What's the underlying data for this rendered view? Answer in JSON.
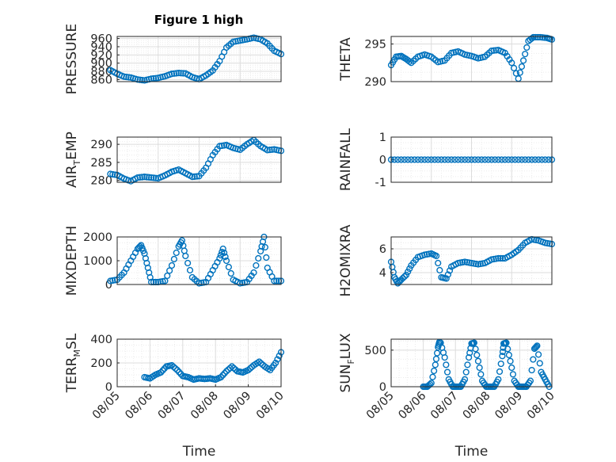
{
  "figure": {
    "title": "Figure 1 high"
  },
  "chart_data": [
    {
      "type": "scatter",
      "id": "pressure",
      "title": "Figure 1 high",
      "xlabel": "",
      "ylabel": "PRESSURE",
      "xlim": [
        "08/06",
        "08/10"
      ],
      "ylim": [
        855,
        965
      ],
      "yticks": [
        860,
        880,
        900,
        920,
        940,
        960
      ],
      "xticks": [],
      "grid": true,
      "minor_grid": true,
      "marker_color": "#0072BD",
      "x": [
        "08/05 20:00",
        "08/06 00:00",
        "08/06 04:00",
        "08/06 08:00",
        "08/06 12:00",
        "08/06 16:00",
        "08/06 20:00",
        "08/07 00:00",
        "08/07 04:00",
        "08/07 08:00",
        "08/07 12:00",
        "08/07 16:00",
        "08/07 20:00",
        "08/08 00:00",
        "08/08 04:00",
        "08/08 08:00",
        "08/08 12:00",
        "08/08 16:00",
        "08/08 20:00",
        "08/09 00:00",
        "08/09 04:00",
        "08/09 08:00",
        "08/09 12:00",
        "08/09 16:00",
        "08/09 20:00",
        "08/10 00:00"
      ],
      "y": [
        883,
        874,
        867,
        865,
        860,
        858,
        862,
        864,
        868,
        874,
        876,
        875,
        866,
        861,
        870,
        882,
        905,
        938,
        952,
        955,
        958,
        962,
        958,
        948,
        930,
        922
      ]
    },
    {
      "type": "scatter",
      "id": "theta",
      "xlabel": "",
      "ylabel": "THETA",
      "xlim": [
        "08/06",
        "08/10"
      ],
      "ylim": [
        290,
        296
      ],
      "yticks": [
        290,
        295
      ],
      "xticks": [],
      "grid": true,
      "minor_grid": true,
      "marker_color": "#0072BD",
      "x": [
        "08/06 00:00",
        "08/06 03:00",
        "08/06 06:00",
        "08/06 09:00",
        "08/06 12:00",
        "08/06 16:00",
        "08/06 20:00",
        "08/07 00:00",
        "08/07 04:00",
        "08/07 08:00",
        "08/07 12:00",
        "08/07 16:00",
        "08/07 20:00",
        "08/08 00:00",
        "08/08 04:00",
        "08/08 08:00",
        "08/08 12:00",
        "08/08 16:00",
        "08/08 20:00",
        "08/09 00:00",
        "08/09 04:00",
        "08/09 07:00",
        "08/09 10:00",
        "08/09 13:00",
        "08/09 17:00",
        "08/09 21:00",
        "08/10 00:00"
      ],
      "y": [
        292.2,
        293.3,
        293.4,
        293.0,
        292.5,
        293.3,
        293.6,
        293.3,
        292.6,
        292.8,
        293.8,
        294.0,
        293.6,
        293.4,
        293.1,
        293.3,
        294.1,
        294.2,
        293.8,
        292.5,
        290.4,
        292.8,
        295.4,
        295.9,
        295.9,
        295.8,
        295.6
      ]
    },
    {
      "type": "scatter",
      "id": "air_temp",
      "xlabel": "",
      "ylabel": "AIR_TEMP",
      "xlim": [
        "08/06",
        "08/10"
      ],
      "ylim": [
        279.5,
        292
      ],
      "yticks": [
        280,
        285,
        290
      ],
      "xticks": [],
      "grid": true,
      "minor_grid": true,
      "marker_color": "#0072BD",
      "x": [
        "08/05 20:00",
        "08/06 00:00",
        "08/06 04:00",
        "08/06 08:00",
        "08/06 12:00",
        "08/06 16:00",
        "08/06 20:00",
        "08/07 00:00",
        "08/07 04:00",
        "08/07 08:00",
        "08/07 12:00",
        "08/07 16:00",
        "08/07 20:00",
        "08/08 00:00",
        "08/08 04:00",
        "08/08 08:00",
        "08/08 12:00",
        "08/08 16:00",
        "08/08 20:00",
        "08/09 00:00",
        "08/09 04:00",
        "08/09 08:00",
        "08/09 12:00",
        "08/09 16:00",
        "08/09 20:00",
        "08/10 00:00"
      ],
      "y": [
        281.8,
        281.5,
        280.5,
        279.8,
        280.8,
        281.0,
        280.8,
        280.6,
        281.4,
        282.4,
        283.0,
        282.0,
        281.0,
        281.2,
        283.5,
        287.0,
        289.5,
        289.8,
        289.0,
        288.5,
        290.0,
        291.2,
        289.5,
        288.4,
        288.6,
        288.2
      ]
    },
    {
      "type": "scatter",
      "id": "rainfall",
      "xlabel": "",
      "ylabel": "RAINFALL",
      "xlim": [
        "08/06",
        "08/10"
      ],
      "ylim": [
        -1,
        1
      ],
      "yticks": [
        -1,
        0,
        1
      ],
      "xticks": [],
      "grid": true,
      "minor_grid": true,
      "marker_color": "#0072BD",
      "x": [
        "08/06 00:00",
        "08/06 06:00",
        "08/06 12:00",
        "08/06 18:00",
        "08/07 00:00",
        "08/07 06:00",
        "08/07 12:00",
        "08/07 18:00",
        "08/08 00:00",
        "08/08 06:00",
        "08/08 12:00",
        "08/08 18:00",
        "08/09 00:00",
        "08/09 06:00",
        "08/09 12:00",
        "08/09 18:00",
        "08/10 00:00"
      ],
      "y": [
        0,
        0,
        0,
        0,
        0,
        0,
        0,
        0,
        0,
        0,
        0,
        0,
        0,
        0,
        0,
        0,
        0
      ]
    },
    {
      "type": "scatter",
      "id": "mixdepth",
      "xlabel": "",
      "ylabel": "MIXDEPTH",
      "xlim": [
        "08/06",
        "08/10"
      ],
      "ylim": [
        0,
        2000
      ],
      "yticks": [
        0,
        1000,
        2000
      ],
      "xticks": [],
      "grid": true,
      "minor_grid": true,
      "marker_color": "#0072BD",
      "x": [
        "08/05 20:00",
        "08/06 00:00",
        "08/06 04:00",
        "08/06 08:00",
        "08/06 12:00",
        "08/06 14:00",
        "08/06 16:00",
        "08/06 18:00",
        "08/06 20:00",
        "08/07 00:00",
        "08/07 04:00",
        "08/07 08:00",
        "08/07 12:00",
        "08/07 14:00",
        "08/07 16:00",
        "08/07 20:00",
        "08/08 00:00",
        "08/08 04:00",
        "08/08 08:00",
        "08/08 12:00",
        "08/08 14:00",
        "08/08 16:00",
        "08/08 20:00",
        "08/09 00:00",
        "08/09 04:00",
        "08/09 08:00",
        "08/09 12:00",
        "08/09 14:00",
        "08/09 16:00",
        "08/09 20:00",
        "08/10 00:00"
      ],
      "y": [
        150,
        200,
        500,
        1000,
        1500,
        1650,
        1300,
        700,
        100,
        100,
        150,
        800,
        1600,
        1850,
        1200,
        300,
        50,
        100,
        600,
        1100,
        1500,
        1000,
        200,
        50,
        100,
        500,
        1400,
        2000,
        700,
        150,
        150
      ]
    },
    {
      "type": "scatter",
      "id": "h2omixra",
      "xlabel": "",
      "ylabel": "H2OMIXRA",
      "xlim": [
        "08/06",
        "08/10"
      ],
      "ylim": [
        3,
        7
      ],
      "yticks": [
        4,
        6
      ],
      "xticks": [],
      "grid": true,
      "minor_grid": true,
      "marker_color": "#0072BD",
      "x": [
        "08/06 00:00",
        "08/06 02:00",
        "08/06 04:00",
        "08/06 06:00",
        "08/06 09:00",
        "08/06 12:00",
        "08/06 16:00",
        "08/06 20:00",
        "08/07 00:00",
        "08/07 03:00",
        "08/07 06:00",
        "08/07 09:00",
        "08/07 12:00",
        "08/07 16:00",
        "08/07 20:00",
        "08/08 00:00",
        "08/08 04:00",
        "08/08 08:00",
        "08/08 12:00",
        "08/08 16:00",
        "08/08 20:00",
        "08/09 00:00",
        "08/09 04:00",
        "08/09 08:00",
        "08/09 12:00",
        "08/09 16:00",
        "08/09 20:00",
        "08/10 00:00"
      ],
      "y": [
        4.9,
        3.6,
        3.1,
        3.4,
        3.8,
        4.6,
        5.3,
        5.5,
        5.6,
        5.4,
        3.6,
        3.5,
        4.5,
        4.8,
        4.9,
        4.8,
        4.7,
        4.8,
        5.1,
        5.2,
        5.2,
        5.5,
        5.9,
        6.5,
        6.8,
        6.7,
        6.5,
        6.4
      ]
    },
    {
      "type": "scatter",
      "id": "terr_msl",
      "xlabel": "Time",
      "ylabel": "TERR_MSL",
      "xlim": [
        "08/05",
        "08/10"
      ],
      "ylim": [
        0,
        400
      ],
      "yticks": [
        0,
        200,
        400
      ],
      "xticks": [
        "08/05",
        "08/06",
        "08/07",
        "08/08",
        "08/09",
        "08/10"
      ],
      "grid": true,
      "minor_grid": true,
      "marker_color": "#0072BD",
      "x": [
        "08/05 20:00",
        "08/06 00:00",
        "08/06 04:00",
        "08/06 08:00",
        "08/06 12:00",
        "08/06 16:00",
        "08/06 20:00",
        "08/07 00:00",
        "08/07 04:00",
        "08/07 08:00",
        "08/07 12:00",
        "08/07 16:00",
        "08/07 20:00",
        "08/08 00:00",
        "08/08 04:00",
        "08/08 08:00",
        "08/08 12:00",
        "08/08 16:00",
        "08/08 20:00",
        "08/09 00:00",
        "08/09 04:00",
        "08/09 08:00",
        "08/09 12:00",
        "08/09 16:00",
        "08/09 20:00",
        "08/10 00:00"
      ],
      "y": [
        80,
        70,
        100,
        120,
        170,
        180,
        140,
        90,
        80,
        60,
        70,
        65,
        70,
        60,
        80,
        130,
        170,
        130,
        120,
        140,
        180,
        210,
        170,
        140,
        200,
        290
      ]
    },
    {
      "type": "scatter",
      "id": "sun_flux",
      "xlabel": "Time",
      "ylabel": "SUN_FLUX",
      "xlim": [
        "08/05",
        "08/10"
      ],
      "ylim": [
        0,
        650
      ],
      "yticks": [
        0,
        500
      ],
      "xticks": [
        "08/05",
        "08/06",
        "08/07",
        "08/08",
        "08/09",
        "08/10"
      ],
      "grid": true,
      "minor_grid": true,
      "marker_color": "#0072BD",
      "x": [
        "08/06 00:00",
        "08/06 03:00",
        "08/06 06:00",
        "08/06 09:00",
        "08/06 11:00",
        "08/06 12:00",
        "08/06 13:00",
        "08/06 16:00",
        "08/06 19:00",
        "08/06 22:00",
        "08/07 01:00",
        "08/07 04:00",
        "08/07 07:00",
        "08/07 10:00",
        "08/07 12:00",
        "08/07 14:00",
        "08/07 17:00",
        "08/07 20:00",
        "08/07 23:00",
        "08/08 02:00",
        "08/08 05:00",
        "08/08 08:00",
        "08/08 11:00",
        "08/08 12:00",
        "08/08 14:00",
        "08/08 17:00",
        "08/08 20:00",
        "08/08 23:00",
        "08/09 02:00",
        "08/09 05:00",
        "08/09 08:00",
        "08/09 11:00",
        "08/09 13:00",
        "08/09 16:00",
        "08/09 19:00",
        "08/09 22:00"
      ],
      "y": [
        0,
        0,
        50,
        300,
        540,
        610,
        600,
        400,
        100,
        0,
        0,
        0,
        100,
        400,
        590,
        600,
        350,
        80,
        0,
        0,
        0,
        100,
        420,
        590,
        600,
        350,
        80,
        0,
        0,
        0,
        80,
        520,
        560,
        200,
        100,
        0
      ]
    }
  ]
}
